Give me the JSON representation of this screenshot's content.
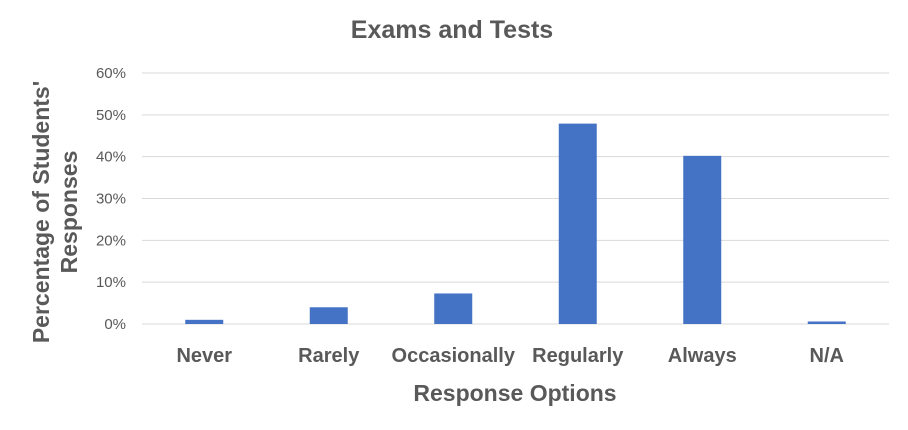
{
  "chart_data": {
    "type": "bar",
    "title": "Exams and Tests",
    "xlabel": "Response Options",
    "ylabel_lines": [
      "Percentage of Students'",
      "Responses"
    ],
    "categories": [
      "Never",
      "Rarely",
      "Occasionally",
      "Regularly",
      "Always",
      "N/A"
    ],
    "values": [
      1,
      4,
      7.3,
      47.9,
      40.2,
      0.6
    ],
    "ylim": [
      0,
      60
    ],
    "yticks": [
      0,
      10,
      20,
      30,
      40,
      50,
      60
    ],
    "ytick_labels": [
      "0%",
      "10%",
      "20%",
      "30%",
      "40%",
      "50%",
      "60%"
    ],
    "grid": true,
    "legend": "none",
    "bar_color": "#4472C4",
    "grid_color": "#D9D9D9",
    "text_color": "#595959"
  }
}
